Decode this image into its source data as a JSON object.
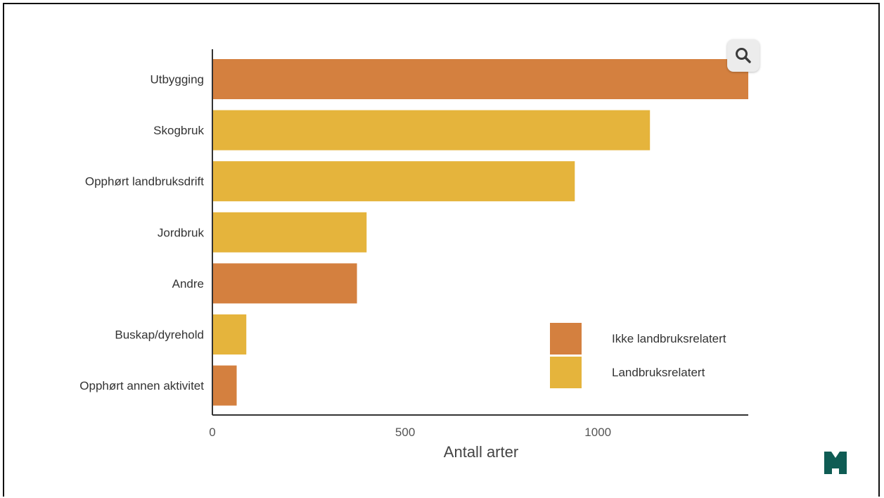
{
  "chart_data": {
    "type": "bar",
    "orientation": "horizontal",
    "categories": [
      "Utbygging",
      "Skogbruk",
      "Opphørt landbruksdrift",
      "Jordbruk",
      "Andre",
      "Buskap/dyrehold",
      "Opphørt annen aktivitet"
    ],
    "values": [
      1390,
      1135,
      940,
      400,
      375,
      88,
      63
    ],
    "groups": [
      "Ikke landbruksrelatert",
      "Landbruksrelatert",
      "Landbruksrelatert",
      "Landbruksrelatert",
      "Ikke landbruksrelatert",
      "Landbruksrelatert",
      "Ikke landbruksrelatert"
    ],
    "xlabel": "Antall arter",
    "ylabel": "",
    "xlim": [
      0,
      1390
    ],
    "xticks": [
      0,
      500,
      1000
    ],
    "grid": false,
    "legend": {
      "position": "bottom-right",
      "entries": [
        {
          "label": "Ikke landbruksrelatert",
          "color": "#D4803F"
        },
        {
          "label": "Landbruksrelatert",
          "color": "#E5B43C"
        }
      ]
    }
  },
  "colors": {
    "Ikke landbruksrelatert": "#D4803F",
    "Landbruksrelatert": "#E5B43C",
    "axis": "#333333",
    "label": "#333333",
    "logo": "#0F5C54"
  },
  "controls": {
    "zoom_icon": "search-icon"
  },
  "logo_icon": "institution-logo-icon"
}
